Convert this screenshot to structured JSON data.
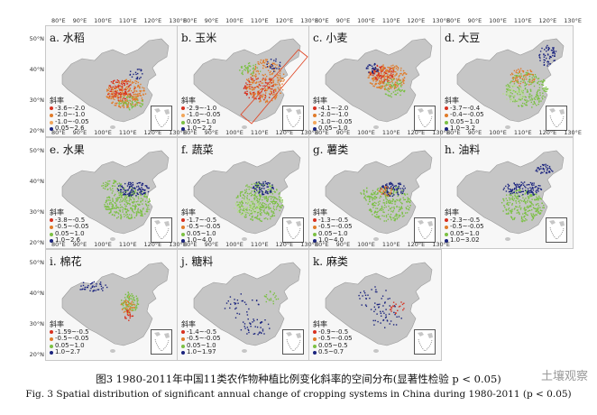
{
  "axes": {
    "lon_labels": [
      "80°E",
      "90°E",
      "100°E",
      "110°E",
      "120°E",
      "130°E"
    ],
    "lat_labels": [
      "50°N",
      "40°N",
      "30°N",
      "20°N"
    ]
  },
  "colors": {
    "land": "#c6c6c6",
    "green": "#7bc043",
    "orange": "#e07b2a",
    "red": "#d7301f",
    "navy": "#1a237e",
    "lightgreen": "#b5dd8a"
  },
  "panels": [
    {
      "id": "a",
      "title": "a. 水稻",
      "legend_title": "斜率",
      "legend": [
        {
          "text": "-3.6~-2.0",
          "color": "#d7301f"
        },
        {
          "text": "-2.0~-1.0",
          "color": "#e07b2a"
        },
        {
          "text": "-1.0~-0.05",
          "color": "#f2a65a"
        },
        {
          "text": "0.05~2.6",
          "color": "#1a237e"
        }
      ]
    },
    {
      "id": "b",
      "title": "b. 玉米",
      "legend_title": "斜率",
      "legend": [
        {
          "text": "-2.9~-1.0",
          "color": "#d7301f"
        },
        {
          "text": "-1.0~-0.05",
          "color": "#f2a65a"
        },
        {
          "text": "0.05~1.0",
          "color": "#7bc043"
        },
        {
          "text": "1.0~2.2",
          "color": "#1a237e"
        }
      ]
    },
    {
      "id": "c",
      "title": "c. 小麦",
      "legend_title": "斜率",
      "legend": [
        {
          "text": "-4.1~-2.0",
          "color": "#d7301f"
        },
        {
          "text": "-2.0~-1.0",
          "color": "#e07b2a"
        },
        {
          "text": "-1.0~-0.05",
          "color": "#f2a65a"
        },
        {
          "text": "0.05~1.0",
          "color": "#1a237e"
        }
      ]
    },
    {
      "id": "d",
      "title": "d. 大豆",
      "legend_title": "斜率",
      "legend": [
        {
          "text": "-3.7~-0.4",
          "color": "#d7301f"
        },
        {
          "text": "-0.4~-0.05",
          "color": "#e07b2a"
        },
        {
          "text": "0.05~1.0",
          "color": "#7bc043"
        },
        {
          "text": "1.0~3.2",
          "color": "#1a237e"
        }
      ]
    },
    {
      "id": "e",
      "title": "e. 水果",
      "legend_title": "斜率",
      "legend": [
        {
          "text": "-3.8~-0.5",
          "color": "#d7301f"
        },
        {
          "text": "-0.5~-0.05",
          "color": "#e07b2a"
        },
        {
          "text": "0.05~1.0",
          "color": "#7bc043"
        },
        {
          "text": "1.0~2.6",
          "color": "#1a237e"
        }
      ]
    },
    {
      "id": "f",
      "title": "f. 蔬菜",
      "legend_title": "斜率",
      "legend": [
        {
          "text": "-1.7~-0.5",
          "color": "#d7301f"
        },
        {
          "text": "-0.5~-0.05",
          "color": "#e07b2a"
        },
        {
          "text": "0.05~1.0",
          "color": "#7bc043"
        },
        {
          "text": "1.0~4.0",
          "color": "#1a237e"
        }
      ]
    },
    {
      "id": "g",
      "title": "g. 薯类",
      "legend_title": "斜率",
      "legend": [
        {
          "text": "-1.3~-0.5",
          "color": "#d7301f"
        },
        {
          "text": "-0.5~-0.05",
          "color": "#e07b2a"
        },
        {
          "text": "0.05~1.0",
          "color": "#7bc043"
        },
        {
          "text": "1.0~4.0",
          "color": "#1a237e"
        }
      ]
    },
    {
      "id": "h",
      "title": "h. 油料",
      "legend_title": "斜率",
      "legend": [
        {
          "text": "-2.3~-0.5",
          "color": "#d7301f"
        },
        {
          "text": "-0.5~-0.05",
          "color": "#e07b2a"
        },
        {
          "text": "0.05~1.0",
          "color": "#7bc043"
        },
        {
          "text": "1.0~3.02",
          "color": "#1a237e"
        }
      ]
    },
    {
      "id": "i",
      "title": "i. 棉花",
      "legend_title": "斜率",
      "legend": [
        {
          "text": "-1.59~-0.5",
          "color": "#d7301f"
        },
        {
          "text": "-0.5~-0.05",
          "color": "#e07b2a"
        },
        {
          "text": "0.05~1.0",
          "color": "#7bc043"
        },
        {
          "text": "1.0~2.7",
          "color": "#1a237e"
        }
      ]
    },
    {
      "id": "j",
      "title": "j. 糖料",
      "legend_title": "斜率",
      "legend": [
        {
          "text": "-1.4~-0.5",
          "color": "#d7301f"
        },
        {
          "text": "-0.5~-0.05",
          "color": "#e07b2a"
        },
        {
          "text": "0.05~1.0",
          "color": "#7bc043"
        },
        {
          "text": "1.0~1.97",
          "color": "#1a237e"
        }
      ]
    },
    {
      "id": "k",
      "title": "k. 麻类",
      "legend_title": "斜率",
      "legend": [
        {
          "text": "-0.9~-0.5",
          "color": "#d7301f"
        },
        {
          "text": "-0.5~-0.05",
          "color": "#e07b2a"
        },
        {
          "text": "0.05~0.5",
          "color": "#7bc043"
        },
        {
          "text": "0.5~0.7",
          "color": "#1a237e"
        }
      ]
    }
  ],
  "caption": {
    "cn": "图3   1980-2011年中国11类农作物种植比例变化斜率的空间分布(显著性检验 p < 0.05)",
    "en": "Fig. 3   Spatial distribution of significant annual change of cropping systems in China during 1980-2011 (p < 0.05)"
  },
  "watermark": "土壤观察"
}
